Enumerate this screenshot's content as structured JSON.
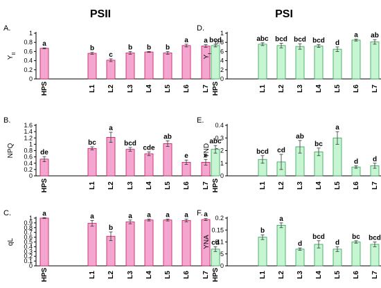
{
  "headings": {
    "left": "PSII",
    "right": "PSI"
  },
  "categories": [
    "HPS",
    "L1",
    "L2",
    "L3",
    "L4",
    "L5",
    "L6",
    "L7"
  ],
  "colors": {
    "pink_fill": "#f4a6d0",
    "pink_stroke": "#c2185b",
    "green_fill": "#c6f5d2",
    "green_stroke": "#2e9e55",
    "axis": "#000000",
    "text": "#000000"
  },
  "chart_data": [
    {
      "type": "bar",
      "panel": "A.",
      "ylabel": "Y",
      "ylabel_sub": "II",
      "column": "left",
      "row": 0,
      "color": "pink",
      "ylim": [
        0,
        1
      ],
      "yticks": [
        0,
        0.2,
        0.4,
        0.6,
        0.8,
        1
      ],
      "ytick_labels": [
        "0",
        "0.2",
        "0.4",
        "0.6",
        "0.8",
        "1"
      ],
      "categories": [
        "HPS",
        "L1",
        "L2",
        "L3",
        "L4",
        "L5",
        "L6",
        "L7"
      ],
      "values": [
        0.67,
        0.56,
        0.41,
        0.57,
        0.59,
        0.57,
        0.73,
        0.72
      ],
      "errors": [
        0.01,
        0.02,
        0.03,
        0.03,
        0.01,
        0.03,
        0.03,
        0.03
      ],
      "letters": [
        "a",
        "b",
        "c",
        "b",
        "b",
        "b",
        "a",
        "a"
      ]
    },
    {
      "type": "bar",
      "panel": "B.",
      "ylabel": "NPQ",
      "ylabel_sub": "",
      "column": "left",
      "row": 1,
      "color": "pink",
      "ylim": [
        0,
        1.6
      ],
      "yticks": [
        0,
        0.2,
        0.4,
        0.6,
        0.8,
        1,
        1.2,
        1.4,
        1.6
      ],
      "ytick_labels": [
        "0",
        "0.2",
        "0.4",
        "0.6",
        "0.8",
        "1",
        "1.2",
        "1.4",
        "1.6"
      ],
      "categories": [
        "HPS",
        "L1",
        "L2",
        "L3",
        "L4",
        "L5",
        "L6",
        "L7"
      ],
      "values": [
        0.53,
        0.87,
        1.22,
        0.84,
        0.7,
        1.02,
        0.43,
        0.43
      ],
      "errors": [
        0.08,
        0.05,
        0.16,
        0.06,
        0.06,
        0.09,
        0.07,
        0.09
      ],
      "letters": [
        "de",
        "bc",
        "a",
        "bcd",
        "cde",
        "ab",
        "e",
        "e"
      ]
    },
    {
      "type": "bar",
      "panel": "C.",
      "ylabel": "qL",
      "ylabel_sub": "",
      "column": "left",
      "row": 2,
      "color": "pink",
      "ylim": [
        0,
        1
      ],
      "yticks": [
        0,
        0.1,
        0.2,
        0.3,
        0.4,
        0.5,
        0.6,
        0.7,
        0.8,
        0.9,
        1
      ],
      "ytick_labels": [
        "0",
        "0.1",
        "0.2",
        "0.3",
        "0.4",
        "0.5",
        "0.6",
        "0.7",
        "0.8",
        "0.9",
        "1"
      ],
      "categories": [
        "HPS",
        "L1",
        "L2",
        "L3",
        "L4",
        "L5",
        "L6",
        "L7"
      ],
      "values": [
        1.0,
        0.89,
        0.62,
        0.92,
        0.96,
        0.96,
        0.95,
        0.97
      ],
      "errors": [
        0.01,
        0.06,
        0.09,
        0.04,
        0.02,
        0.02,
        0.03,
        0.02
      ],
      "letters": [
        "a",
        "a",
        "b",
        "a",
        "a",
        "a",
        "a",
        "a"
      ]
    },
    {
      "type": "bar",
      "panel": "D.",
      "ylabel": "Y",
      "ylabel_sub": "I",
      "column": "right",
      "row": 0,
      "color": "green",
      "ylim": [
        0,
        1
      ],
      "yticks": [
        0,
        0.2,
        0.4,
        0.6,
        0.8,
        1
      ],
      "ytick_labels": [
        "0",
        "0.2",
        "0.4",
        "0.6",
        "0.8",
        "1"
      ],
      "categories": [
        "HPS",
        "L1",
        "L2",
        "L3",
        "L4",
        "L5",
        "L6",
        "L7"
      ],
      "values": [
        0.73,
        0.76,
        0.73,
        0.71,
        0.72,
        0.65,
        0.85,
        0.81
      ],
      "errors": [
        0.03,
        0.03,
        0.05,
        0.06,
        0.03,
        0.05,
        0.02,
        0.05
      ],
      "letters": [
        "bcd",
        "abc",
        "bcd",
        "bcd",
        "bcd",
        "d",
        "a",
        "ab"
      ]
    },
    {
      "type": "bar",
      "panel": "E.",
      "ylabel": "YND",
      "ylabel_sub": "",
      "column": "right",
      "row": 1,
      "color": "green",
      "ylim": [
        0,
        0.4
      ],
      "yticks": [
        0,
        0.1,
        0.2,
        0.3,
        0.4
      ],
      "ytick_labels": [
        "0",
        "0.1",
        "0.2",
        "0.3",
        "0.4"
      ],
      "categories": [
        "HPS",
        "L1",
        "L2",
        "L3",
        "L4",
        "L5",
        "L6",
        "L7"
      ],
      "values": [
        0.21,
        0.13,
        0.11,
        0.23,
        0.19,
        0.3,
        0.07,
        0.08
      ],
      "errors": [
        0.03,
        0.03,
        0.06,
        0.05,
        0.03,
        0.05,
        0.01,
        0.02
      ],
      "letters": [
        "abc",
        "bcd",
        "cd",
        "ab",
        "bc",
        "a",
        "d",
        "d"
      ]
    },
    {
      "type": "bar",
      "panel": "F.",
      "ylabel": "YNA",
      "ylabel_sub": "",
      "column": "right",
      "row": 2,
      "color": "green",
      "ylim": [
        0,
        0.2
      ],
      "yticks": [
        0,
        0.05,
        0.1,
        0.15,
        0.2
      ],
      "ytick_labels": [
        "0",
        "0.05",
        "0.1",
        "0.15",
        "0.2"
      ],
      "categories": [
        "HPS",
        "L1",
        "L2",
        "L3",
        "L4",
        "L5",
        "L6",
        "L7"
      ],
      "values": [
        0.07,
        0.12,
        0.17,
        0.07,
        0.09,
        0.07,
        0.1,
        0.09
      ],
      "errors": [
        0.01,
        0.01,
        0.01,
        0.005,
        0.015,
        0.01,
        0.005,
        0.01
      ],
      "letters": [
        "cd",
        "b",
        "a",
        "d",
        "bcd",
        "d",
        "bc",
        "bcd"
      ]
    }
  ]
}
